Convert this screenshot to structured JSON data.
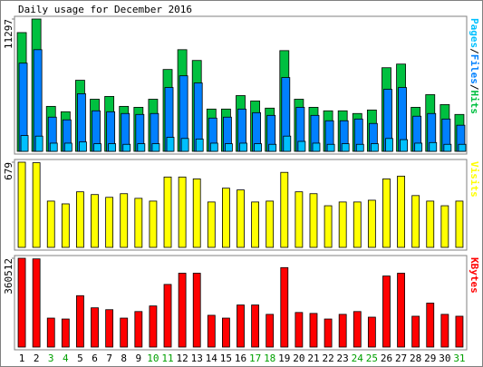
{
  "title": "Daily usage for December 2016",
  "legend_separator": "/",
  "chart_data": [
    {
      "type": "bar",
      "ylim": [
        0,
        11297
      ],
      "yticks": [
        11297
      ],
      "series": [
        {
          "name": "Hits",
          "color": "#00c040",
          "values": [
            10140,
            11297,
            3840,
            3380,
            6070,
            4450,
            4690,
            3840,
            3760,
            4450,
            6990,
            8680,
            7760,
            3610,
            3610,
            4760,
            4300,
            3690,
            8600,
            4450,
            3760,
            3460,
            3460,
            3230,
            3530,
            7140,
            7450,
            3760,
            4840,
            3990,
            3150
          ]
        },
        {
          "name": "Files",
          "color": "#0080ff",
          "values": [
            7530,
            8680,
            2920,
            2690,
            4920,
            3460,
            3380,
            3230,
            3150,
            3230,
            5450,
            6450,
            5840,
            2840,
            2920,
            3610,
            3300,
            3070,
            6300,
            3760,
            3070,
            2610,
            2610,
            2760,
            2380,
            5300,
            5450,
            3000,
            3230,
            2760,
            2230
          ]
        },
        {
          "name": "Pages",
          "color": "#00c0ff",
          "values": [
            1350,
            1300,
            700,
            700,
            800,
            650,
            650,
            600,
            650,
            650,
            1200,
            1100,
            1050,
            700,
            650,
            700,
            650,
            600,
            1300,
            850,
            700,
            600,
            650,
            600,
            650,
            1100,
            1000,
            700,
            750,
            600,
            600
          ]
        }
      ],
      "legend_order": [
        "Pages",
        "Files",
        "Hits"
      ]
    },
    {
      "type": "bar",
      "ylim": [
        0,
        679
      ],
      "yticks": [
        679
      ],
      "series": [
        {
          "name": "Visits",
          "color": "#ffff00",
          "values": [
            679,
            675,
            369,
            347,
            443,
            421,
            399,
            428,
            391,
            369,
            561,
            561,
            546,
            362,
            472,
            458,
            362,
            369,
            598,
            443,
            428,
            332,
            362,
            362,
            376,
            546,
            568,
            413,
            369,
            332,
            369
          ]
        }
      ]
    },
    {
      "type": "bar",
      "ylim": [
        0,
        360512
      ],
      "yticks": [
        360512
      ],
      "categories": [
        "1",
        "2",
        "3",
        "4",
        "5",
        "6",
        "7",
        "8",
        "9",
        "10",
        "11",
        "12",
        "13",
        "14",
        "15",
        "16",
        "17",
        "18",
        "19",
        "20",
        "21",
        "22",
        "23",
        "24",
        "25",
        "26",
        "27",
        "28",
        "29",
        "30",
        "31"
      ],
      "category_colors": [
        "#000000",
        "#000000",
        "#00a000",
        "#00a000",
        "#000000",
        "#000000",
        "#000000",
        "#000000",
        "#000000",
        "#00a000",
        "#00a000",
        "#000000",
        "#000000",
        "#000000",
        "#000000",
        "#000000",
        "#00a000",
        "#00a000",
        "#000000",
        "#000000",
        "#000000",
        "#000000",
        "#000000",
        "#00a000",
        "#00a000",
        "#000000",
        "#000000",
        "#000000",
        "#000000",
        "#000000",
        "#00a000"
      ],
      "series": [
        {
          "name": "KBytes",
          "color": "#ff0000",
          "values": [
            360512,
            358000,
            117600,
            113900,
            208700,
            159400,
            151800,
            117600,
            144200,
            166900,
            254300,
            299800,
            299800,
            129000,
            117600,
            170800,
            170800,
            132800,
            322600,
            140400,
            136600,
            113900,
            132800,
            144200,
            121400,
            288400,
            299800,
            125200,
            178500,
            132800,
            125200
          ]
        }
      ]
    }
  ]
}
